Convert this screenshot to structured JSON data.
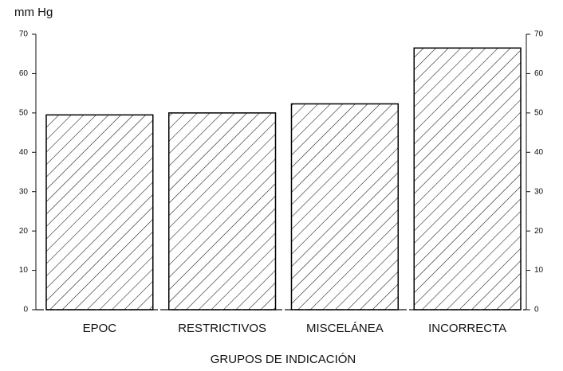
{
  "chart_data": {
    "type": "bar",
    "y_axis_label": "mm Hg",
    "x_axis_label": "GRUPOS DE INDICACIÓN",
    "categories": [
      "EPOC",
      "RESTRICTIVOS",
      "MISCELÁNEA",
      "INCORRECTA"
    ],
    "values": [
      49.5,
      50,
      52.3,
      66.5
    ],
    "color": "#000000",
    "hatch": true,
    "ylim": [
      0,
      70
    ],
    "yticks": [
      0,
      10,
      20,
      30,
      40,
      50,
      60,
      70
    ],
    "y2lim": [
      0,
      70
    ],
    "y2ticks": [
      0,
      10,
      20,
      30,
      40,
      50,
      60,
      70
    ]
  }
}
